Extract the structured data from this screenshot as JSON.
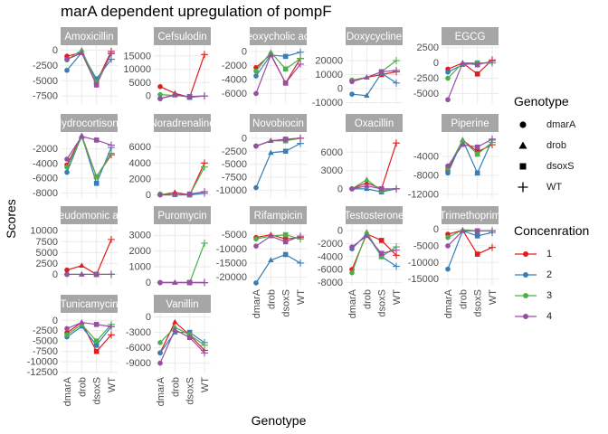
{
  "chart_data": {
    "type": "line",
    "title": "marA dependent upregulation of pompF",
    "xlabel": "Genotype",
    "ylabel": "Scores",
    "categories": [
      "dmarA",
      "drob",
      "dsoxS",
      "WT"
    ],
    "grid": true,
    "facet_strip_color": "#a6a6a6",
    "legend": {
      "placement": "right",
      "shape": {
        "title": "Genotype",
        "items": [
          {
            "label": "dmarA",
            "symbol": "circle"
          },
          {
            "label": "drob",
            "symbol": "triangle"
          },
          {
            "label": "dsoxS",
            "symbol": "square"
          },
          {
            "label": "WT",
            "symbol": "plus"
          }
        ]
      },
      "color": {
        "title": "Concenration",
        "items": [
          {
            "label": "1",
            "color": "#e41a1c"
          },
          {
            "label": "2",
            "color": "#377eb8"
          },
          {
            "label": "3",
            "color": "#4daf4a"
          },
          {
            "label": "4",
            "color": "#984ea3"
          }
        ]
      }
    },
    "panels": [
      {
        "title": "Amoxicillin",
        "ylim": [
          -8800,
          800
        ],
        "yticks": [
          0,
          -2500,
          -5000,
          -7500
        ],
        "ytick_labels": [
          "0",
          "-2500",
          "-5000",
          "-7500"
        ],
        "series": [
          {
            "values": [
              -1000,
              -400,
              -5200,
              -200
            ]
          },
          {
            "values": [
              -3300,
              -400,
              -4700,
              -1500
            ]
          },
          {
            "values": [
              -1600,
              0,
              -5300,
              -600
            ]
          },
          {
            "values": [
              -1500,
              -500,
              -5700,
              -500
            ]
          }
        ]
      },
      {
        "title": "Cefsulodin",
        "ylim": [
          -3000,
          19000
        ],
        "yticks": [
          15000,
          10000,
          5000,
          0
        ],
        "ytick_labels": [
          "15000",
          "10000",
          "5000",
          "0"
        ],
        "series": [
          {
            "values": [
              3500,
              1000,
              -500,
              15500
            ]
          },
          {
            "values": [
              -1000,
              500,
              -500,
              0
            ]
          },
          {
            "values": [
              500,
              200,
              -200,
              0
            ]
          },
          {
            "values": [
              -1000,
              300,
              -300,
              0
            ]
          }
        ]
      },
      {
        "title": "Deoxycholic acid",
        "ylim": [
          -7500,
          900
        ],
        "yticks": [
          0,
          -2000,
          -4000,
          -6000
        ],
        "ytick_labels": [
          "0",
          "-2000",
          "-4000",
          "-6000"
        ],
        "series": [
          {
            "values": [
              -2300,
              -400,
              -4500,
              -1000
            ]
          },
          {
            "values": [
              -3500,
              -500,
              -700,
              -100
            ]
          },
          {
            "values": [
              -2800,
              -100,
              -2500,
              -1000
            ]
          },
          {
            "values": [
              -6000,
              -500,
              -4500,
              -1800
            ]
          }
        ]
      },
      {
        "title": "Doxycycline",
        "ylim": [
          -11000,
          31000
        ],
        "yticks": [
          20000,
          10000,
          0,
          -10000
        ],
        "ytick_labels": [
          "20000",
          "10000",
          "0",
          "-10000"
        ],
        "series": [
          {
            "values": [
              6000,
              8000,
              10000,
              12000
            ]
          },
          {
            "values": [
              -4000,
              -5000,
              11000,
              4000
            ]
          },
          {
            "values": [
              6000,
              8000,
              12000,
              20000
            ]
          },
          {
            "values": [
              5000,
              8000,
              12000,
              13000
            ]
          }
        ]
      },
      {
        "title": "EGCG",
        "ylim": [
          -6700,
          2900
        ],
        "yticks": [
          2500,
          0,
          -2500,
          -5000
        ],
        "ytick_labels": [
          "2500",
          "0",
          "-2500",
          "-5000"
        ],
        "series": [
          {
            "values": [
              -1000,
              0,
              -1800,
              500
            ]
          },
          {
            "values": [
              -1500,
              -300,
              0,
              0
            ]
          },
          {
            "values": [
              -2500,
              0,
              0,
              0
            ]
          },
          {
            "values": [
              -6000,
              0,
              -300,
              300
            ]
          }
        ]
      },
      {
        "title": "Hydrocortisone",
        "ylim": [
          -8700,
          300
        ],
        "yticks": [
          -2000,
          -4000,
          -6000,
          -8000
        ],
        "ytick_labels": [
          "-2000",
          "-4000",
          "-6000",
          "-8000"
        ],
        "series": [
          {
            "values": [
              -4200,
              -200,
              -5800,
              -2800
            ]
          },
          {
            "values": [
              -5200,
              -200,
              -6700,
              -1800
            ]
          },
          {
            "values": [
              -4500,
              -400,
              -5800,
              -2600
            ]
          },
          {
            "values": [
              -3400,
              -300,
              -800,
              -1500
            ]
          }
        ]
      },
      {
        "title": "Noradrenaline",
        "ylim": [
          -400,
          7900
        ],
        "yticks": [
          6000,
          4000,
          2000,
          0
        ],
        "ytick_labels": [
          "6000",
          "4000",
          "2000",
          "0"
        ],
        "series": [
          {
            "values": [
              0,
              300,
              0,
              4000
            ]
          },
          {
            "values": [
              0,
              0,
              0,
              200
            ]
          },
          {
            "values": [
              100,
              0,
              0,
              3500
            ]
          },
          {
            "values": [
              0,
              0,
              100,
              400
            ]
          }
        ]
      },
      {
        "title": "Novobiocin",
        "ylim": [
          -11500,
          1200
        ],
        "yticks": [
          0,
          -2500,
          -5000,
          -7500,
          -10000
        ],
        "ytick_labels": [
          "0",
          "-2500",
          "-5000",
          "-7500",
          "-10000"
        ],
        "series": [
          {
            "values": [
              -1500,
              -500,
              -200,
              0
            ]
          },
          {
            "values": [
              -9500,
              -2800,
              -2500,
              -1000
            ]
          },
          {
            "values": [
              -1500,
              -500,
              -500,
              0
            ]
          },
          {
            "values": [
              -1500,
              -500,
              -200,
              0
            ]
          }
        ]
      },
      {
        "title": "Oxacillin",
        "ylim": [
          -1500,
          9300
        ],
        "yticks": [
          6000,
          3000,
          0
        ],
        "ytick_labels": [
          "6000",
          "3000",
          "0"
        ],
        "series": [
          {
            "values": [
              0,
              1000,
              0,
              7500
            ]
          },
          {
            "values": [
              0,
              0,
              -500,
              0
            ]
          },
          {
            "values": [
              0,
              1500,
              -300,
              0
            ]
          },
          {
            "values": [
              0,
              500,
              0,
              0
            ]
          }
        ]
      },
      {
        "title": "Piperine",
        "ylim": [
          -12800,
          1200
        ],
        "yticks": [
          -4000,
          -8000,
          -12000
        ],
        "ytick_labels": [
          "-4000",
          "-8000",
          "-12000"
        ],
        "series": [
          {
            "values": [
              -7000,
              -500,
              -3000,
              -1500
            ]
          },
          {
            "values": [
              -7500,
              -500,
              -7500,
              -500
            ]
          },
          {
            "values": [
              -6500,
              -500,
              -3500,
              -1000
            ]
          },
          {
            "values": [
              -6000,
              -1500,
              -2000,
              -300
            ]
          }
        ]
      },
      {
        "title": "Pseudomonic acid",
        "ylim": [
          -2600,
          11500
        ],
        "yticks": [
          10000,
          7500,
          5000,
          2500,
          0
        ],
        "ytick_labels": [
          "10000",
          "7500",
          "5000",
          "2500",
          "0"
        ],
        "series": [
          {
            "values": [
              1000,
              2000,
              0,
              8000
            ]
          },
          {
            "values": [
              0,
              0,
              0,
              0
            ]
          },
          {
            "values": [
              0,
              0,
              0,
              0
            ]
          },
          {
            "values": [
              0,
              0,
              0,
              0
            ]
          }
        ]
      },
      {
        "title": "Puromycin",
        "ylim": [
          -200,
          3700
        ],
        "yticks": [
          3000,
          2000,
          1000,
          0
        ],
        "ytick_labels": [
          "3000",
          "2000",
          "1000",
          "0"
        ],
        "series": [
          {
            "values": [
              0,
              0,
              0,
              0
            ]
          },
          {
            "values": [
              0,
              0,
              0,
              0
            ]
          },
          {
            "values": [
              0,
              0,
              0,
              2500
            ]
          },
          {
            "values": [
              0,
              0,
              0,
              0
            ]
          }
        ]
      },
      {
        "title": "Rifampicin",
        "ylim": [
          -23000,
          -1300
        ],
        "yticks": [
          -5000,
          -10000,
          -15000,
          -20000
        ],
        "ytick_labels": [
          "-5000",
          "-10000",
          "-15000",
          "-20000"
        ],
        "series": [
          {
            "values": [
              -6000,
              -5000,
              -6500,
              -6000
            ]
          },
          {
            "values": [
              -22000,
              -14000,
              -12000,
              -15000
            ]
          },
          {
            "values": [
              -6500,
              -5500,
              -5000,
              -6500
            ]
          },
          {
            "values": [
              -9000,
              -5500,
              -7500,
              -5500
            ]
          }
        ]
      },
      {
        "title": "Testosterone",
        "ylim": [
          -8500,
          1000
        ],
        "yticks": [
          0,
          -2000,
          -4000,
          -6000,
          -8000
        ],
        "ytick_labels": [
          "0",
          "-2000",
          "-4000",
          "-6000",
          "-8000"
        ],
        "series": [
          {
            "values": [
              -6000,
              -500,
              -1500,
              -3800
            ]
          },
          {
            "values": [
              -2800,
              -500,
              -4000,
              -5500
            ]
          },
          {
            "values": [
              -6500,
              -200,
              -4000,
              -2500
            ]
          },
          {
            "values": [
              -2500,
              -800,
              -3500,
              -3000
            ]
          }
        ]
      },
      {
        "title": "Trimethoprim",
        "ylim": [
          -17000,
          1500
        ],
        "yticks": [
          0,
          -5000,
          -10000,
          -15000
        ],
        "ytick_labels": [
          "0",
          "-5000",
          "-10000",
          "-15000"
        ],
        "series": [
          {
            "values": [
              -1500,
              -300,
              -7500,
              -5500
            ]
          },
          {
            "values": [
              -12000,
              -500,
              -2000,
              -1000
            ]
          },
          {
            "values": [
              -2500,
              -200,
              -500,
              -500
            ]
          },
          {
            "values": [
              -5000,
              -500,
              -500,
              -500
            ]
          }
        ]
      },
      {
        "title": "Tunicamycin",
        "ylim": [
          -12800,
          1800
        ],
        "yticks": [
          0,
          -2500,
          -5000,
          -7500,
          -10000,
          -12500
        ],
        "ytick_labels": [
          "0",
          "-2500",
          "-5000",
          "-7500",
          "-10000",
          "-12500"
        ],
        "series": [
          {
            "values": [
              -3000,
              -500,
              -7500,
              -3500
            ]
          },
          {
            "values": [
              -4000,
              -1500,
              -6000,
              -1500
            ]
          },
          {
            "values": [
              -3500,
              -1000,
              -5000,
              -1000
            ]
          },
          {
            "values": [
              -2000,
              -500,
              -1000,
              -1500
            ]
          }
        ]
      },
      {
        "title": "Vanillin",
        "ylim": [
          -11000,
          800
        ],
        "yticks": [
          0,
          -3000,
          -6000,
          -9000
        ],
        "ytick_labels": [
          "0",
          "-3000",
          "-6000",
          "-9000"
        ],
        "series": [
          {
            "values": [
              -7000,
              -1000,
              -3500,
              -6500
            ]
          },
          {
            "values": [
              -7000,
              -3000,
              -3000,
              -5000
            ]
          },
          {
            "values": [
              -5000,
              -2000,
              -3500,
              -5500
            ]
          },
          {
            "values": [
              -9000,
              -2500,
              -4000,
              -7000
            ]
          }
        ]
      }
    ]
  }
}
